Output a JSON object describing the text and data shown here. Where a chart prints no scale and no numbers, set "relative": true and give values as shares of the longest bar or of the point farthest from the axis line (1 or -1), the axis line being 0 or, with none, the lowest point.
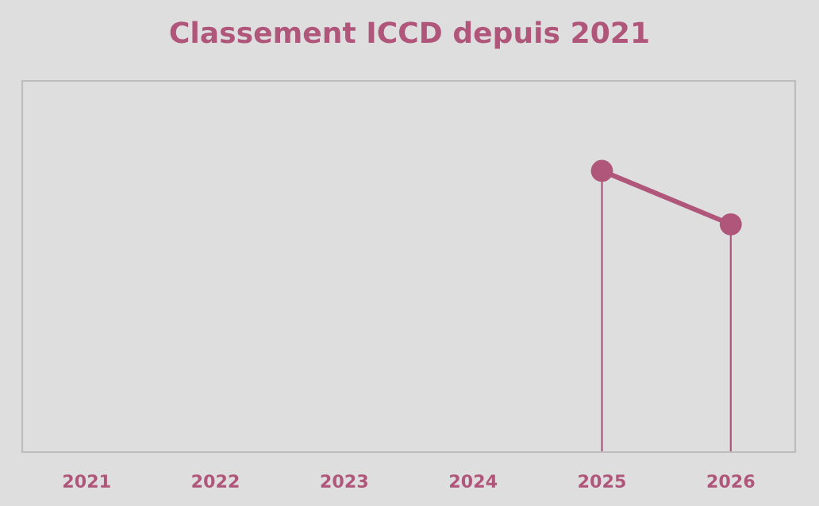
{
  "chart_data": {
    "type": "line",
    "title": "Classement ICCD depuis 2021",
    "categories": [
      "2021",
      "2022",
      "2023",
      "2024",
      "2025",
      "2026"
    ],
    "series": [
      {
        "color": "#b0567a",
        "values": [
          null,
          null,
          null,
          null,
          1,
          0.81
        ]
      }
    ],
    "relative": true,
    "marker": "circle",
    "line_style": "solid",
    "legend": false
  }
}
